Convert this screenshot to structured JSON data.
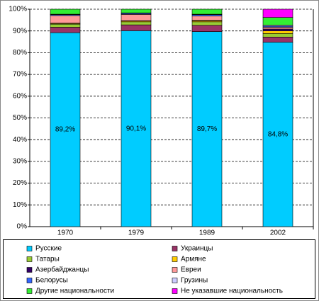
{
  "chart_data": {
    "type": "stacked_bar",
    "categories": [
      "1970",
      "1979",
      "1989",
      "2002"
    ],
    "series": [
      {
        "name": "Русские",
        "color": "#00ccff",
        "values": [
          89.2,
          90.1,
          89.7,
          84.8
        ],
        "value_labels": [
          "89,2%",
          "90,1%",
          "89,7%",
          "84,8%"
        ]
      },
      {
        "name": "Украинцы",
        "color": "#993366",
        "values": [
          2.5,
          2.7,
          2.9,
          2.4
        ]
      },
      {
        "name": "Татары",
        "color": "#99cc33",
        "values": [
          1.4,
          1.4,
          1.6,
          1.6
        ]
      },
      {
        "name": "Армяне",
        "color": "#ffcc00",
        "values": [
          0.3,
          0.4,
          0.5,
          1.2
        ]
      },
      {
        "name": "Азербайджанцы",
        "color": "#330066",
        "values": [
          0.2,
          0.1,
          0.2,
          0.9
        ]
      },
      {
        "name": "Евреи",
        "color": "#ff9999",
        "values": [
          3.5,
          2.9,
          2.0,
          0.8
        ]
      },
      {
        "name": "Белорусы",
        "color": "#3366ff",
        "values": [
          0.4,
          0.5,
          0.6,
          0.5
        ]
      },
      {
        "name": "Грузины",
        "color": "#ccccff",
        "values": [
          0.2,
          0.2,
          0.2,
          0.5
        ]
      },
      {
        "name": "Другие национальности",
        "color": "#33ee33",
        "values": [
          2.3,
          1.7,
          2.3,
          3.5
        ]
      },
      {
        "name": "Не указавшие национальность",
        "color": "#ff00ff",
        "values": [
          0,
          0,
          0,
          3.8
        ]
      }
    ],
    "ylim": [
      0,
      100
    ],
    "yticks": [
      {
        "value": 0,
        "label": "0%"
      },
      {
        "value": 10,
        "label": "10%"
      },
      {
        "value": 20,
        "label": "20%"
      },
      {
        "value": 30,
        "label": "30%"
      },
      {
        "value": 40,
        "label": "40%"
      },
      {
        "value": 50,
        "label": "50%"
      },
      {
        "value": 60,
        "label": "60%"
      },
      {
        "value": 70,
        "label": "70%"
      },
      {
        "value": 80,
        "label": "80%"
      },
      {
        "value": 90,
        "label": "90%"
      },
      {
        "value": 100,
        "label": "100%"
      }
    ],
    "grid": true
  }
}
